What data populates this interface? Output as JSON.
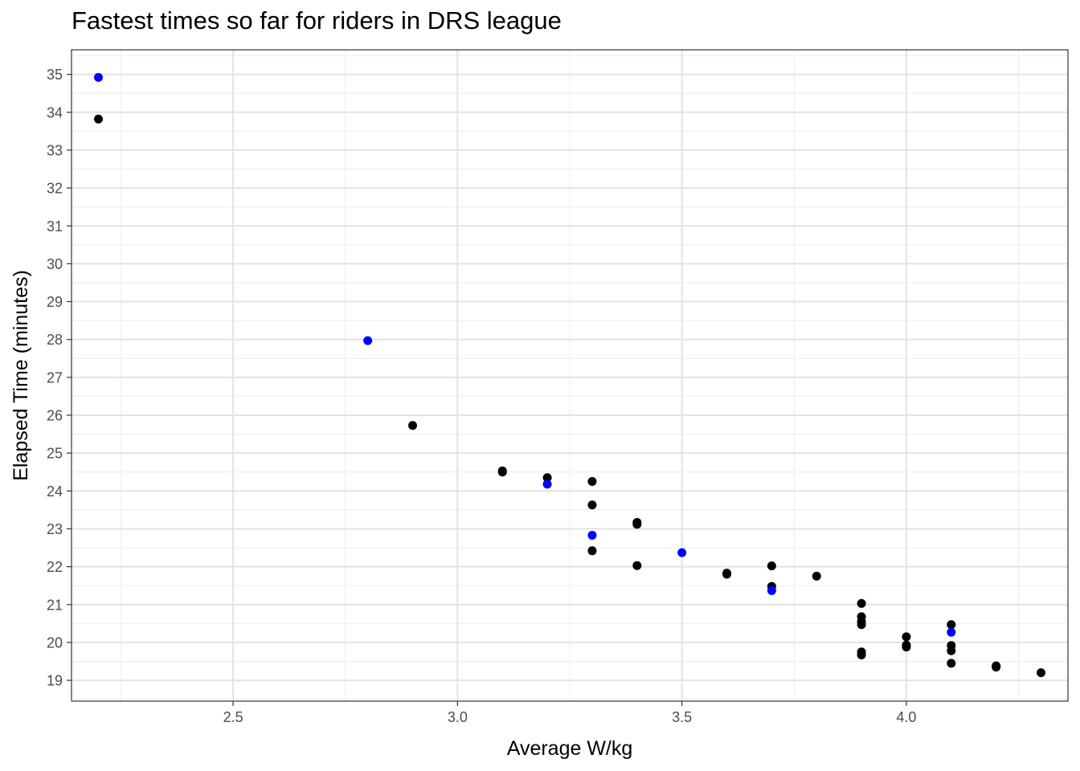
{
  "chart_data": {
    "type": "scatter",
    "title": "Fastest times so far for riders in DRS league",
    "xlabel": "Average W/kg",
    "ylabel": "Elapsed Time (minutes)",
    "xlim": [
      2.14,
      4.36
    ],
    "ylim": [
      18.45,
      35.65
    ],
    "x_ticks": [
      2.5,
      3.0,
      3.5,
      4.0
    ],
    "x_tick_labels": [
      "2.5",
      "3.0",
      "3.5",
      "4.0"
    ],
    "y_ticks": [
      19,
      20,
      21,
      22,
      23,
      24,
      25,
      26,
      27,
      28,
      29,
      30,
      31,
      32,
      33,
      34,
      35
    ],
    "y_tick_labels": [
      "19",
      "20",
      "21",
      "22",
      "23",
      "24",
      "25",
      "26",
      "27",
      "28",
      "29",
      "30",
      "31",
      "32",
      "33",
      "34",
      "35"
    ],
    "grid": true,
    "legend": "none",
    "colors": {
      "black_points": "#000000",
      "blue_points": "#0000ff"
    },
    "series": [
      {
        "color": "#000000",
        "points": [
          {
            "x": 2.2,
            "y": 33.82
          },
          {
            "x": 2.9,
            "y": 25.73
          },
          {
            "x": 3.1,
            "y": 24.53
          },
          {
            "x": 3.1,
            "y": 24.5
          },
          {
            "x": 3.2,
            "y": 24.35
          },
          {
            "x": 3.3,
            "y": 24.25
          },
          {
            "x": 3.3,
            "y": 23.63
          },
          {
            "x": 3.3,
            "y": 22.42
          },
          {
            "x": 3.4,
            "y": 23.17
          },
          {
            "x": 3.4,
            "y": 23.12
          },
          {
            "x": 3.4,
            "y": 22.03
          },
          {
            "x": 3.6,
            "y": 21.83
          },
          {
            "x": 3.6,
            "y": 21.8
          },
          {
            "x": 3.7,
            "y": 22.02
          },
          {
            "x": 3.7,
            "y": 21.48
          },
          {
            "x": 3.8,
            "y": 21.75
          },
          {
            "x": 3.9,
            "y": 21.03
          },
          {
            "x": 3.9,
            "y": 20.68
          },
          {
            "x": 3.9,
            "y": 20.55
          },
          {
            "x": 3.9,
            "y": 20.47
          },
          {
            "x": 3.9,
            "y": 19.75
          },
          {
            "x": 3.9,
            "y": 19.67
          },
          {
            "x": 4.0,
            "y": 20.15
          },
          {
            "x": 4.0,
            "y": 19.93
          },
          {
            "x": 4.0,
            "y": 19.88
          },
          {
            "x": 4.1,
            "y": 20.47
          },
          {
            "x": 4.1,
            "y": 19.92
          },
          {
            "x": 4.1,
            "y": 19.78
          },
          {
            "x": 4.1,
            "y": 19.45
          },
          {
            "x": 4.2,
            "y": 19.38
          },
          {
            "x": 4.2,
            "y": 19.35
          },
          {
            "x": 4.3,
            "y": 19.2
          }
        ]
      },
      {
        "color": "#0000ff",
        "points": [
          {
            "x": 2.2,
            "y": 34.92
          },
          {
            "x": 2.8,
            "y": 27.97
          },
          {
            "x": 3.2,
            "y": 24.18
          },
          {
            "x": 3.3,
            "y": 22.83
          },
          {
            "x": 3.5,
            "y": 22.37
          },
          {
            "x": 3.7,
            "y": 21.37
          },
          {
            "x": 4.1,
            "y": 20.27
          }
        ]
      }
    ]
  }
}
